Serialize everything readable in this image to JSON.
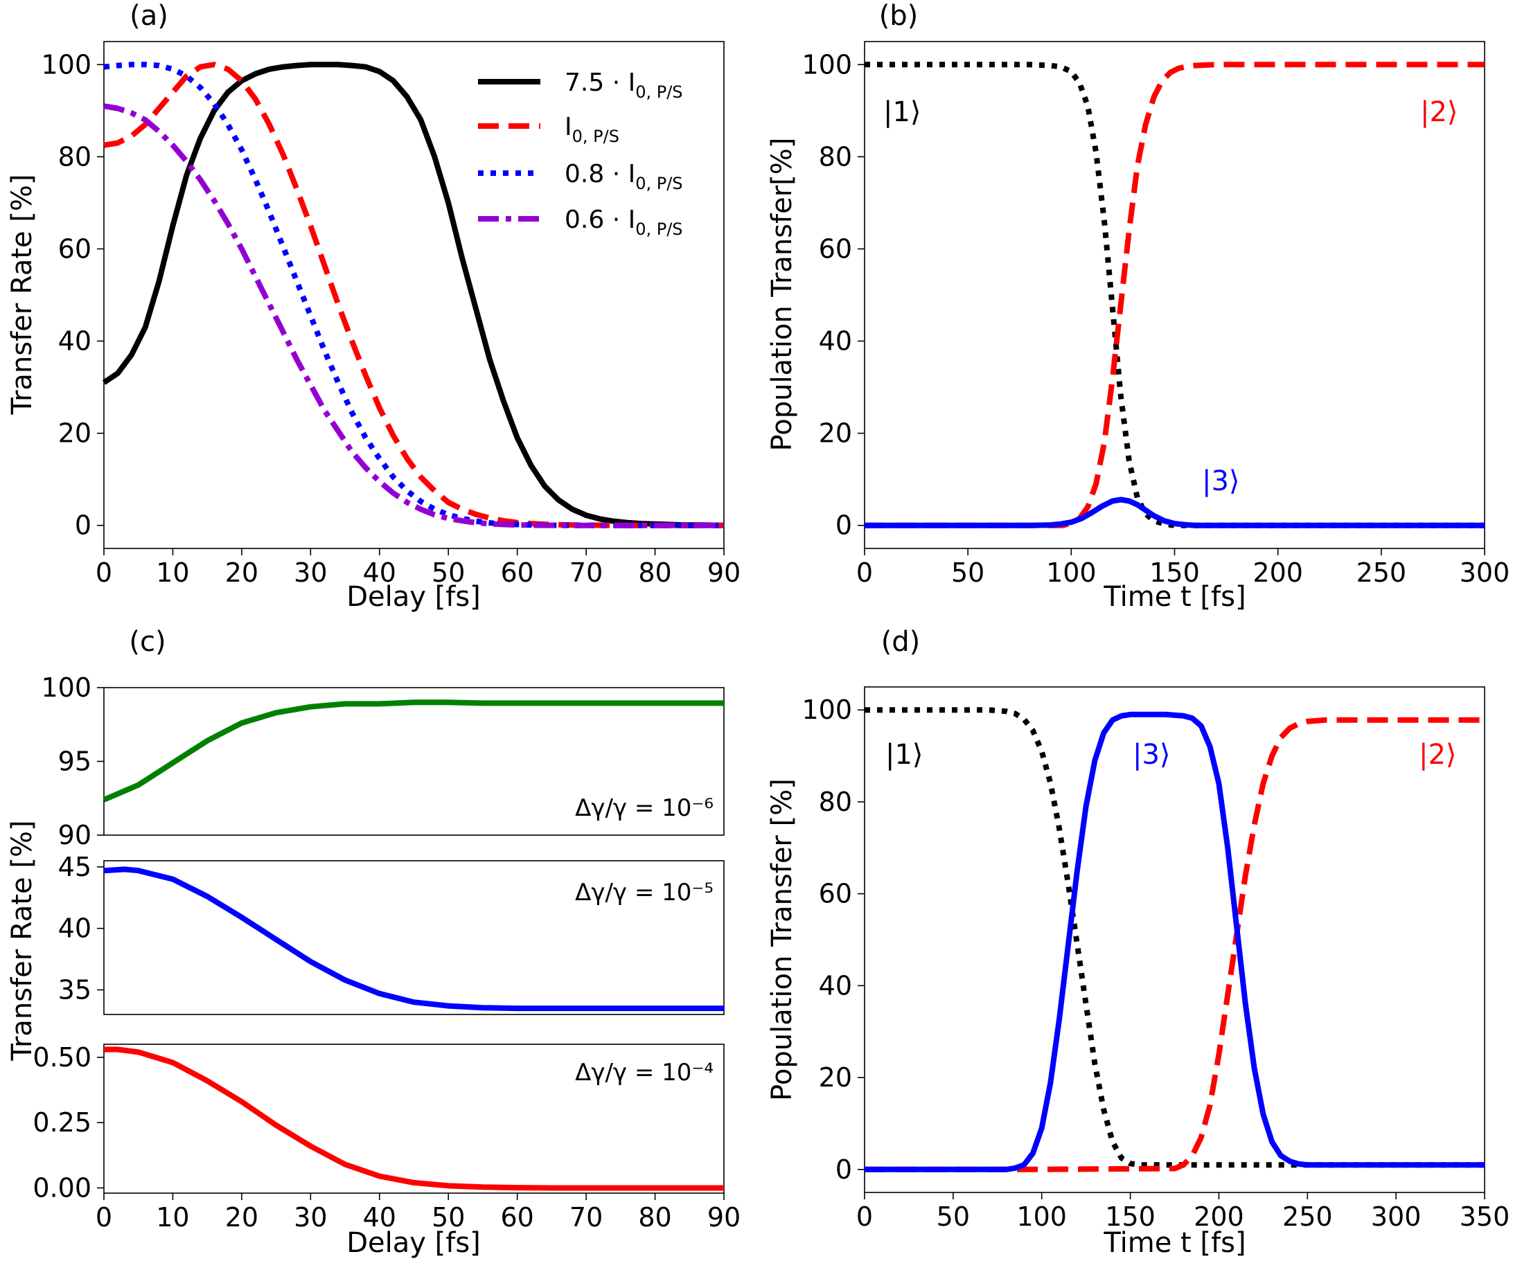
{
  "chart_data": [
    {
      "id": "a",
      "type": "line",
      "panel_label": "(a)",
      "xlabel": "Delay [fs]",
      "ylabel": "Transfer Rate [%]",
      "xlim": [
        0,
        90
      ],
      "ylim": [
        -5,
        105
      ],
      "xticks": [
        0,
        10,
        20,
        30,
        40,
        50,
        60,
        70,
        80,
        90
      ],
      "yticks": [
        0,
        20,
        40,
        60,
        80,
        100
      ],
      "legend_position": "top-right",
      "series": [
        {
          "name": "7.5 · I0,P/S",
          "legend_main": "7.5 · I",
          "legend_sub": "0, P/S",
          "color": "#000000",
          "style": "solid",
          "x": [
            0,
            2,
            4,
            6,
            8,
            10,
            12,
            14,
            16,
            18,
            20,
            22,
            24,
            26,
            28,
            30,
            32,
            34,
            36,
            38,
            40,
            42,
            44,
            46,
            48,
            50,
            52,
            54,
            56,
            58,
            60,
            62,
            64,
            66,
            68,
            70,
            72,
            74,
            76,
            78,
            80,
            82,
            84,
            86,
            88,
            90
          ],
          "y": [
            31,
            33,
            37,
            43,
            53,
            65,
            76,
            84,
            90,
            94,
            96.5,
            98,
            99,
            99.5,
            99.8,
            100,
            100,
            100,
            99.8,
            99.5,
            98.5,
            96.5,
            93,
            88,
            80,
            70,
            58,
            47,
            36,
            27,
            19,
            13,
            8.5,
            5.5,
            3.5,
            2.2,
            1.4,
            0.9,
            0.6,
            0.4,
            0.3,
            0.2,
            0.1,
            0.1,
            0.05,
            0
          ]
        },
        {
          "name": "I0,P/S",
          "legend_main": "I",
          "legend_sub": "0, P/S",
          "color": "#ff0000",
          "style": "dashed",
          "x": [
            0,
            2,
            4,
            6,
            8,
            10,
            12,
            14,
            16,
            18,
            20,
            22,
            24,
            26,
            28,
            30,
            32,
            34,
            36,
            38,
            40,
            42,
            44,
            46,
            48,
            50,
            52,
            54,
            56,
            58,
            60,
            62,
            64,
            66,
            68,
            70,
            72,
            74,
            76,
            78,
            80,
            82,
            84,
            86,
            88,
            90
          ],
          "y": [
            82.5,
            83,
            84.5,
            87,
            90.5,
            94,
            97.5,
            99.5,
            100,
            99,
            96.5,
            92.5,
            87,
            80.5,
            73,
            65,
            56.5,
            48,
            40,
            32.5,
            25.5,
            19.5,
            14.5,
            10.5,
            7.5,
            5,
            3.5,
            2.4,
            1.6,
            1,
            0.6,
            0.4,
            0.25,
            0.15,
            0.1,
            0.05,
            0.03,
            0.02,
            0.01,
            0,
            0,
            0,
            0,
            0,
            0,
            0
          ]
        },
        {
          "name": "0.8 · I0,P/S",
          "legend_main": "0.8 · I",
          "legend_sub": "0, P/S",
          "color": "#0000ff",
          "style": "dotted",
          "x": [
            0,
            2,
            4,
            6,
            8,
            10,
            12,
            14,
            16,
            18,
            20,
            22,
            24,
            26,
            28,
            30,
            32,
            34,
            36,
            38,
            40,
            42,
            44,
            46,
            48,
            50,
            52,
            54,
            56,
            58,
            60,
            62,
            64,
            66,
            68,
            70,
            72,
            74,
            76,
            78,
            80,
            82,
            84,
            86,
            88,
            90
          ],
          "y": [
            99.5,
            99.8,
            100,
            100,
            99.8,
            99,
            97.5,
            95,
            91.5,
            87,
            81.5,
            75,
            68,
            60.5,
            53,
            45.5,
            38,
            31,
            24.5,
            19,
            14.5,
            10.5,
            7.5,
            5.2,
            3.5,
            2.3,
            1.5,
            0.9,
            0.55,
            0.3,
            0.2,
            0.1,
            0.05,
            0.03,
            0.01,
            0,
            0,
            0,
            0,
            0,
            0,
            0,
            0,
            0,
            0,
            0
          ]
        },
        {
          "name": "0.6 · I0,P/S",
          "legend_main": "0.6 · I",
          "legend_sub": "0, P/S",
          "color": "#9400d3",
          "style": "dashdot",
          "x": [
            0,
            2,
            4,
            6,
            8,
            10,
            12,
            14,
            16,
            18,
            20,
            22,
            24,
            26,
            28,
            30,
            32,
            34,
            36,
            38,
            40,
            42,
            44,
            46,
            48,
            50,
            52,
            54,
            56,
            58,
            60,
            62,
            64,
            66,
            68,
            70,
            72,
            74,
            76,
            78,
            80,
            82,
            84,
            86,
            88,
            90
          ],
          "y": [
            91,
            90.5,
            89.5,
            88,
            85.5,
            82.5,
            79,
            75,
            70.5,
            65.5,
            60,
            54,
            48,
            42,
            36,
            30.5,
            25,
            20.5,
            16,
            12.5,
            9.5,
            7,
            5,
            3.5,
            2.3,
            1.5,
            1,
            0.6,
            0.35,
            0.2,
            0.1,
            0.05,
            0.02,
            0.01,
            0,
            0,
            0,
            0,
            0,
            0,
            0,
            0,
            0,
            0,
            0,
            0
          ]
        }
      ]
    },
    {
      "id": "b",
      "type": "line",
      "panel_label": "(b)",
      "xlabel": "Time t [fs]",
      "ylabel": "Population Transfer[%]",
      "xlim": [
        0,
        300
      ],
      "ylim": [
        -5,
        105
      ],
      "xticks": [
        0,
        50,
        100,
        150,
        200,
        250,
        300
      ],
      "yticks": [
        0,
        20,
        40,
        60,
        80,
        100
      ],
      "series": [
        {
          "name": "|1⟩",
          "color": "#000000",
          "style": "dotted",
          "x": [
            0,
            80,
            90,
            95,
            100,
            104,
            108,
            112,
            116,
            120,
            124,
            128,
            132,
            136,
            140,
            145,
            150,
            300
          ],
          "y": [
            100,
            100,
            99.8,
            99.5,
            98.5,
            96,
            91,
            81,
            66,
            47,
            28,
            14,
            6,
            2.5,
            1,
            0.3,
            0,
            0
          ]
        },
        {
          "name": "|2⟩",
          "color": "#ff0000",
          "style": "dashed",
          "x": [
            0,
            96,
            100,
            104,
            108,
            112,
            116,
            120,
            124,
            128,
            132,
            136,
            140,
            144,
            148,
            152,
            156,
            160,
            170,
            180,
            300
          ],
          "y": [
            0,
            0,
            0.5,
            1.5,
            4,
            9,
            18,
            32,
            48,
            64,
            78,
            87,
            93,
            96.5,
            98.3,
            99.2,
            99.6,
            99.8,
            100,
            100,
            100
          ]
        },
        {
          "name": "|3⟩",
          "color": "#0000ff",
          "style": "solid",
          "x": [
            0,
            80,
            90,
            95,
            100,
            105,
            110,
            115,
            120,
            124,
            128,
            132,
            136,
            140,
            145,
            150,
            155,
            160,
            300
          ],
          "y": [
            0,
            0,
            0.1,
            0.3,
            0.7,
            1.5,
            2.8,
            4.2,
            5.3,
            5.6,
            5.3,
            4.5,
            3.3,
            2.1,
            1,
            0.4,
            0.15,
            0,
            0
          ]
        }
      ],
      "state_labels": [
        "|1⟩",
        "|2⟩",
        "|3⟩"
      ]
    },
    {
      "id": "c",
      "type": "line",
      "panel_label": "(c)",
      "xlabel": "Delay [fs]",
      "ylabel": "Transfer Rate [%]",
      "xticks": [
        0,
        10,
        20,
        30,
        40,
        50,
        60,
        70,
        80,
        90
      ],
      "subplots": [
        {
          "annotation": "Δγ/γ = 10⁻⁶",
          "color": "#008000",
          "xlim": [
            0,
            90
          ],
          "ylim": [
            90,
            100
          ],
          "yticks": [
            90,
            95,
            100
          ],
          "x": [
            0,
            5,
            10,
            15,
            20,
            25,
            30,
            35,
            40,
            45,
            50,
            55,
            60,
            65,
            70,
            75,
            80,
            85,
            90
          ],
          "y": [
            92.4,
            93.4,
            94.9,
            96.4,
            97.6,
            98.3,
            98.7,
            98.9,
            98.9,
            99,
            99,
            98.95,
            98.95,
            98.95,
            98.95,
            98.95,
            98.95,
            98.95,
            98.95
          ]
        },
        {
          "annotation": "Δγ/γ = 10⁻⁵",
          "color": "#0000ff",
          "xlim": [
            0,
            90
          ],
          "ylim": [
            33,
            45.5
          ],
          "yticks": [
            35,
            40,
            45
          ],
          "x": [
            0,
            3,
            5,
            10,
            15,
            20,
            25,
            30,
            35,
            40,
            45,
            50,
            55,
            60,
            65,
            70,
            75,
            80,
            85,
            90
          ],
          "y": [
            44.7,
            44.8,
            44.7,
            44,
            42.6,
            40.9,
            39.1,
            37.3,
            35.8,
            34.7,
            34,
            33.7,
            33.55,
            33.5,
            33.5,
            33.5,
            33.5,
            33.5,
            33.5,
            33.5
          ]
        },
        {
          "annotation": "Δγ/γ = 10⁻⁴",
          "color": "#ff0000",
          "xlim": [
            0,
            90
          ],
          "ylim": [
            -0.02,
            0.55
          ],
          "yticks": [
            0.0,
            0.25,
            0.5
          ],
          "ytick_labels": [
            "0.00",
            "0.25",
            "0.50"
          ],
          "x": [
            0,
            2,
            5,
            10,
            15,
            20,
            25,
            30,
            35,
            40,
            45,
            50,
            55,
            60,
            65,
            70,
            75,
            80,
            85,
            90
          ],
          "y": [
            0.53,
            0.53,
            0.52,
            0.48,
            0.41,
            0.33,
            0.24,
            0.16,
            0.09,
            0.045,
            0.02,
            0.008,
            0.003,
            0.001,
            0,
            0,
            0,
            0,
            0,
            0
          ]
        }
      ]
    },
    {
      "id": "d",
      "type": "line",
      "panel_label": "(d)",
      "xlabel": "Time t [fs]",
      "ylabel": "Population Transfer [%]",
      "xlim": [
        0,
        350
      ],
      "ylim": [
        -5,
        105
      ],
      "xticks": [
        0,
        50,
        100,
        150,
        200,
        250,
        300,
        350
      ],
      "yticks": [
        0,
        20,
        40,
        60,
        80,
        100
      ],
      "series": [
        {
          "name": "|1⟩",
          "color": "#000000",
          "style": "dotted",
          "x": [
            0,
            70,
            80,
            85,
            90,
            95,
            100,
            105,
            110,
            115,
            120,
            125,
            130,
            135,
            140,
            145,
            150,
            155,
            160,
            350
          ],
          "y": [
            100,
            100,
            99.7,
            99.2,
            98,
            95.5,
            91,
            84,
            74,
            62,
            49,
            36,
            23,
            13,
            6,
            2.5,
            1.3,
            1,
            1,
            1
          ]
        },
        {
          "name": "|2⟩",
          "color": "#ff0000",
          "style": "dashed",
          "x": [
            0,
            90,
            175,
            180,
            185,
            190,
            195,
            200,
            205,
            210,
            215,
            220,
            225,
            230,
            235,
            240,
            245,
            250,
            260,
            350
          ],
          "y": [
            0,
            0,
            0.2,
            1,
            3,
            7,
            14,
            25,
            38,
            51,
            64,
            75,
            84,
            90,
            94,
            96,
            97,
            97.5,
            97.8,
            97.8
          ]
        },
        {
          "name": "|3⟩",
          "color": "#0000ff",
          "style": "solid",
          "x": [
            0,
            80,
            85,
            90,
            95,
            100,
            105,
            110,
            115,
            120,
            125,
            130,
            135,
            140,
            145,
            150,
            160,
            170,
            180,
            185,
            190,
            195,
            200,
            205,
            210,
            215,
            220,
            225,
            230,
            235,
            240,
            245,
            250,
            350
          ],
          "y": [
            0,
            0,
            0.3,
            1,
            3.5,
            9,
            19,
            33,
            49,
            65,
            79,
            89,
            95,
            97.8,
            98.7,
            99,
            99,
            99,
            98.7,
            98.2,
            96.5,
            92,
            84,
            70,
            53,
            36,
            22,
            12,
            6,
            3,
            1.8,
            1.2,
            1,
            1
          ]
        }
      ],
      "state_labels": [
        "|1⟩",
        "|3⟩",
        "|2⟩"
      ]
    }
  ]
}
